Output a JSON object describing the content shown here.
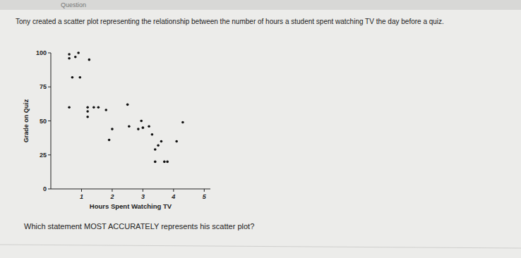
{
  "page": {
    "header": "Question",
    "prompt": "Tony created a scatter plot representing the relationship between the number of hours a student spent watching TV the day before a quiz.",
    "question": "Which statement MOST ACCURATELY represents his scatter plot?"
  },
  "chart_data": {
    "type": "scatter",
    "x_label": "Hours Spent Watching TV",
    "y_label": "Grade on Quiz",
    "x": [
      0.6,
      0.6,
      0.8,
      0.9,
      1.25,
      0.7,
      0.95,
      0.6,
      1.2,
      1.2,
      1.4,
      1.55,
      1.8,
      2.5,
      1.2,
      2.0,
      2.55,
      2.85,
      3.0,
      2.95,
      3.2,
      4.3,
      1.9,
      3.3,
      3.5,
      3.6,
      4.1,
      3.4,
      3.4,
      3.7,
      3.8
    ],
    "values": [
      99,
      96,
      97,
      100,
      95,
      82,
      82,
      60,
      60,
      57,
      60,
      60,
      58,
      62,
      53,
      44,
      46,
      44,
      45,
      50,
      46,
      49,
      36,
      40,
      32,
      35,
      35,
      29,
      20,
      20,
      20
    ],
    "color": "#111111",
    "marker": "circle",
    "xlim": [
      0,
      5.2
    ],
    "ylim": [
      0,
      100
    ],
    "xticks": [
      1,
      2,
      3,
      4,
      5
    ],
    "yticks": [
      0,
      25,
      50,
      75,
      100
    ],
    "grid": false
  }
}
